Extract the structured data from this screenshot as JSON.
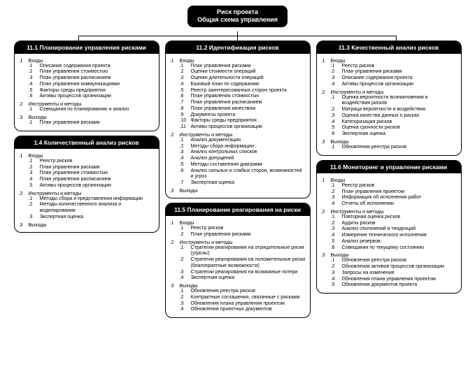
{
  "colors": {
    "header_bg": "#000000",
    "header_fg": "#ffffff",
    "body_bg": "#ffffff",
    "border": "#000000"
  },
  "root": {
    "line1": "Риск проекта",
    "line2": "Общая схема управления"
  },
  "boxes": {
    "b11_1": {
      "title": "11.1 Планирование управления рисками",
      "sections": [
        {
          "num": ".1",
          "label": "Входы",
          "items": [
            {
              "n": ".1",
              "t": "Описание содержания проекта"
            },
            {
              "n": ".2",
              "t": "План управления стоимостью"
            },
            {
              "n": ".3",
              "t": "План управления расписанием"
            },
            {
              "n": ".4",
              "t": "План управления коммуникациями"
            },
            {
              "n": ".5",
              "t": "Факторы среды предприятия"
            },
            {
              "n": ".6",
              "t": "Активы процессов организации"
            }
          ]
        },
        {
          "num": ".2",
          "label": "Инструменты и методы",
          "items": [
            {
              "n": ".1",
              "t": "Совещания по планированию и анализ"
            }
          ]
        },
        {
          "num": ".3",
          "label": "Выходы",
          "items": [
            {
              "n": ".1",
              "t": "План управления рисками"
            }
          ]
        }
      ]
    },
    "b1_4": {
      "title": "1.4 Количественный анализ рисков",
      "sections": [
        {
          "num": ".1",
          "label": "Входы",
          "items": [
            {
              "n": ".1",
              "t": "Реестр рисков"
            },
            {
              "n": ".2",
              "t": "План управления рисками"
            },
            {
              "n": ".3",
              "t": "План управления стоимостью"
            },
            {
              "n": ".4",
              "t": "План управления расписанием"
            },
            {
              "n": ".5",
              "t": "Активы процессов организации"
            }
          ]
        },
        {
          "num": ".2",
          "label": "Инструменты и методы",
          "items": [
            {
              "n": ".1",
              "t": "Методы сбора и представления информации"
            },
            {
              "n": ".2",
              "t": "Методы количественного анализа и моделирования"
            },
            {
              "n": ".3",
              "t": "Экспертная оценка"
            }
          ]
        },
        {
          "num": ".3",
          "label": "Выходы",
          "items": []
        }
      ]
    },
    "b11_2": {
      "title": "11.2 Идентификация рисков",
      "sections": [
        {
          "num": ".1",
          "label": "Входы",
          "items": [
            {
              "n": ".1",
              "t": "План управления рисками"
            },
            {
              "n": ".2",
              "t": "Оценки стоимости операций"
            },
            {
              "n": ".3",
              "t": "Оценки длительности операций"
            },
            {
              "n": ".4",
              "t": "Базовый план по содержанию"
            },
            {
              "n": ".5",
              "t": "Реестр заинтересованных сторон проекта"
            },
            {
              "n": ".6",
              "t": "План управления стоимостью"
            },
            {
              "n": ".7",
              "t": "План управления расписанием"
            },
            {
              "n": ".8",
              "t": "План управления качеством"
            },
            {
              "n": ".9",
              "t": "Документы проекта"
            },
            {
              "n": ".10",
              "t": "Факторы среды предприятия ."
            },
            {
              "n": ".11",
              "t": "Активы процессов организации"
            }
          ]
        },
        {
          "num": ".2",
          "label": "Инструменты и методы",
          "items": [
            {
              "n": ".1",
              "t": "Анализ документации"
            },
            {
              "n": ".2",
              "t": "Методы сбора информации ."
            },
            {
              "n": ".3",
              "t": "Анализ контрольных списков"
            },
            {
              "n": ".4",
              "t": "Анализ допущений"
            },
            {
              "n": ".5",
              "t": "Методы составления диаграмм"
            },
            {
              "n": ".6",
              "t": "Анализ сильных и слабых сторон, возможностей и угроз"
            },
            {
              "n": ".7",
              "t": "Экспертная оценка"
            }
          ]
        },
        {
          "num": ".3",
          "label": "Выходы",
          "items": []
        }
      ]
    },
    "b11_5": {
      "title": "11.5 Планирование реагирования на риски",
      "sections": [
        {
          "num": ".1",
          "label": "Входы",
          "items": [
            {
              "n": ".1",
              "t": "Реестр рисков"
            },
            {
              "n": ".2",
              "t": "План управления рисками"
            }
          ]
        },
        {
          "num": ".2",
          "label": "Инструменты и методы",
          "items": [
            {
              "n": ".1",
              "t": "Стратегии реагирования на отрицательные риски (угрозы)"
            },
            {
              "n": ".2",
              "t": "Стратегии реагирования на положительные риски (благоприятные возможности)"
            },
            {
              "n": ".3",
              "t": "Стратегии реагирования на возможные потери"
            },
            {
              "n": ".4",
              "t": "Экспертная оценка"
            }
          ]
        },
        {
          "num": ".3",
          "label": "Выходы",
          "items": [
            {
              "n": ".1",
              "t": "Обновления реестра рисков"
            },
            {
              "n": ".2",
              "t": "Контрактные соглашения, связанные с рисками"
            },
            {
              "n": ".3",
              "t": "Обновления плана управления проектом"
            },
            {
              "n": ".4",
              "t": "Обновления проектных документов"
            }
          ]
        }
      ]
    },
    "b11_3": {
      "title": "11.3 Качественный анализ рисков",
      "sections": [
        {
          "num": ".1",
          "label": "Входы",
          "items": [
            {
              "n": ".1",
              "t": "Реестр рисков"
            },
            {
              "n": ".2",
              "t": "План управления рисками"
            },
            {
              "n": ".3",
              "t": "Описание содержания проекта"
            },
            {
              "n": ".4",
              "t": "Активы процессов организации"
            }
          ]
        },
        {
          "num": ".2",
          "label": "Инструменты и методы",
          "items": [
            {
              "n": ".1",
              "t": "Оценка вероятности возникновения и воздействия рисков"
            },
            {
              "n": ".2",
              "t": "Матрица вероятности и воздействия"
            },
            {
              "n": ".3",
              "t": "Оценка качества данных о рисках"
            },
            {
              "n": ".4",
              "t": "Категоризация рисков"
            },
            {
              "n": ".5",
              "t": "Оценка срочности рисков"
            },
            {
              "n": ".6",
              "t": "Экспертная оценка"
            }
          ]
        },
        {
          "num": ".3",
          "label": "Выходы",
          "items": [
            {
              "n": ".1",
              "t": "Обновления реестра рисков"
            }
          ]
        }
      ]
    },
    "b11_6": {
      "title": "11.6 Мониторинг и управление рисками",
      "sections": [
        {
          "num": ".1",
          "label": "Входы",
          "items": [
            {
              "n": ".1",
              "t": "Реестр рисков"
            },
            {
              "n": ".2",
              "t": "План управления проектом"
            },
            {
              "n": ".3",
              "t": "Информация об исполнении работ"
            },
            {
              "n": ".4",
              "t": "Отчеты об исполнении"
            }
          ]
        },
        {
          "num": ".2",
          "label": "Инструменты и методы",
          "items": [
            {
              "n": ".1",
              "t": "Повторная оценка рисков"
            },
            {
              "n": ".2",
              "t": "Аудиты рисков"
            },
            {
              "n": ".3",
              "t": "Анализ отклонений и тенденций"
            },
            {
              "n": ".4",
              "t": "Измерение технического исполнения"
            },
            {
              "n": ".5",
              "t": "Анализ резервов"
            },
            {
              "n": ".6",
              "t": "Совещания по текущему состоянию"
            }
          ]
        },
        {
          "num": ".3",
          "label": "Выходы",
          "items": [
            {
              "n": ".1",
              "t": "Обновления реестра рисков"
            },
            {
              "n": ".2",
              "t": "Обновления активов процессов организации"
            },
            {
              "n": ".3",
              "t": "Запросы на изменение"
            },
            {
              "n": ".4",
              "t": "Обновления плана управления проектом"
            },
            {
              "n": ".5",
              "t": "Обновления документов проекта"
            }
          ]
        }
      ]
    }
  },
  "layout": {
    "columns": [
      [
        "b11_1",
        "b1_4"
      ],
      [
        "b11_2",
        "b11_5"
      ],
      [
        "b11_3",
        "b11_6"
      ]
    ]
  }
}
